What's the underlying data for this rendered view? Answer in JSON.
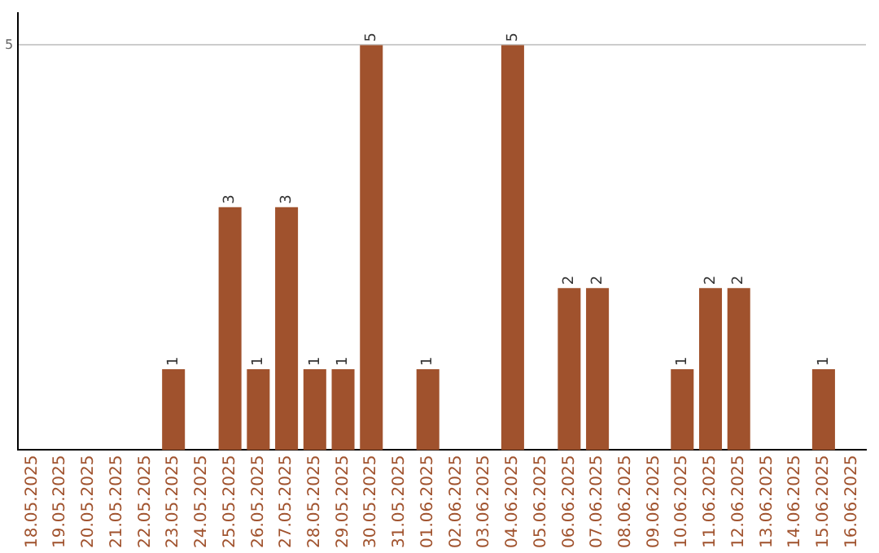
{
  "chart_data": {
    "type": "bar",
    "categories": [
      "18.05.2025",
      "19.05.2025",
      "20.05.2025",
      "21.05.2025",
      "22.05.2025",
      "23.05.2025",
      "24.05.2025",
      "25.05.2025",
      "26.05.2025",
      "27.05.2025",
      "28.05.2025",
      "29.05.2025",
      "30.05.2025",
      "31.05.2025",
      "01.06.2025",
      "02.06.2025",
      "03.06.2025",
      "04.06.2025",
      "05.06.2025",
      "06.06.2025",
      "07.06.2025",
      "08.06.2025",
      "09.06.2025",
      "10.06.2025",
      "11.06.2025",
      "12.06.2025",
      "13.06.2025",
      "14.06.2025",
      "15.06.2025",
      "16.06.2025"
    ],
    "values": [
      0,
      0,
      0,
      0,
      0,
      1,
      0,
      3,
      1,
      3,
      1,
      1,
      5,
      0,
      1,
      0,
      0,
      5,
      0,
      2,
      2,
      0,
      0,
      1,
      2,
      2,
      0,
      0,
      1,
      0
    ],
    "value_labels": [
      null,
      null,
      null,
      null,
      null,
      "1",
      null,
      "3",
      "1",
      "3",
      "1",
      "1",
      "5",
      null,
      "1",
      null,
      null,
      "5",
      null,
      "2",
      "2",
      null,
      null,
      "1",
      "2",
      "2",
      null,
      null,
      "1",
      null
    ],
    "color": "#a0522d",
    "ylim": [
      0,
      5.4
    ],
    "yticks": [
      5
    ],
    "grid": "y",
    "legend": false
  }
}
